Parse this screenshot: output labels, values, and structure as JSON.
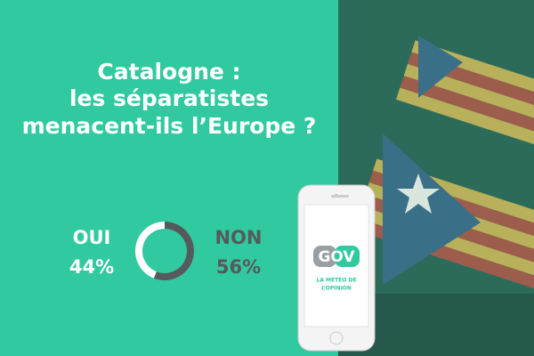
{
  "chart_data": {
    "type": "donut",
    "title": [
      "Catalogne :",
      "les séparatistes",
      "menacent-ils l’Europe ?"
    ],
    "categories": [
      "OUI",
      "NON"
    ],
    "values": [
      44,
      56
    ],
    "value_labels": [
      "44%",
      "56%"
    ],
    "colors": [
      "#ffffff",
      "#555a5c"
    ]
  },
  "branding": {
    "logo": "GOV",
    "tagline": [
      "LA MÉTÉO DE",
      "L’OPINION"
    ]
  }
}
